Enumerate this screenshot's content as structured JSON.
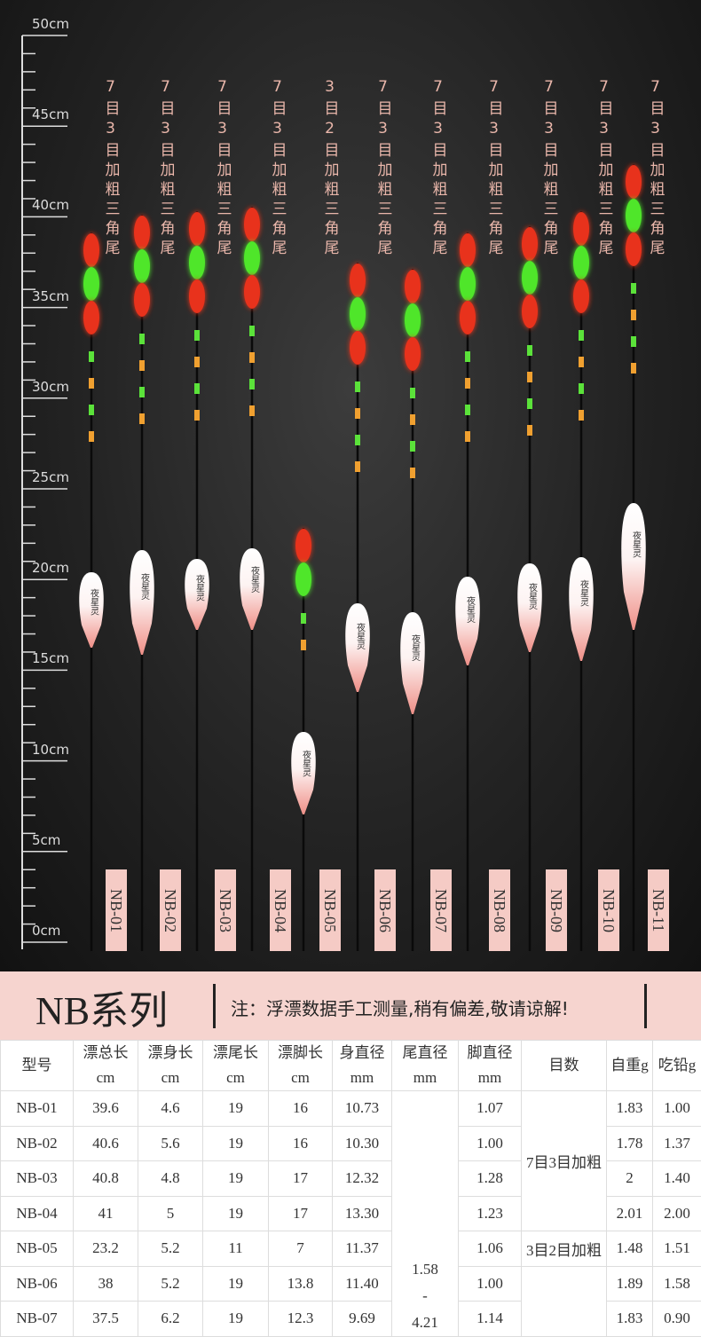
{
  "ruler_labels": [
    "50cm",
    "45cm",
    "40cm",
    "35cm",
    "30cm",
    "25cm",
    "20cm",
    "15cm",
    "10cm",
    "5cm",
    "0cm"
  ],
  "brand_mark": "夜星灵",
  "floats": [
    {
      "tail": "7目3目加粗三角尾",
      "model": "NB-01"
    },
    {
      "tail": "7目3目加粗三角尾",
      "model": "NB-02"
    },
    {
      "tail": "7目3目加粗三角尾",
      "model": "NB-03"
    },
    {
      "tail": "7目3目加粗三角尾",
      "model": "NB-04"
    },
    {
      "tail": "3目2目加粗三角尾",
      "model": "NB-05"
    },
    {
      "tail": "7目3目加粗三角尾",
      "model": "NB-06"
    },
    {
      "tail": "7目3目加粗三角尾",
      "model": "NB-07"
    },
    {
      "tail": "7目3目加粗三角尾",
      "model": "NB-08"
    },
    {
      "tail": "7目3目加粗三角尾",
      "model": "NB-09"
    },
    {
      "tail": "7目3目加粗三角尾",
      "model": "NB-10"
    },
    {
      "tail": "7目3目加粗三角尾",
      "model": "NB-11"
    }
  ],
  "banner": {
    "title": "NB系列",
    "note": "注：浮漂数据手工测量,稍有偏差,敬请谅解!"
  },
  "table": {
    "headers": [
      [
        "型号"
      ],
      [
        "漂总长",
        "cm"
      ],
      [
        "漂身长",
        "cm"
      ],
      [
        "漂尾长",
        "cm"
      ],
      [
        "漂脚长",
        "cm"
      ],
      [
        "身直径",
        "mm"
      ],
      [
        "尾直径",
        "mm"
      ],
      [
        "脚直径",
        "mm"
      ],
      [
        "目数"
      ],
      [
        "自重g"
      ],
      [
        "吃铅g"
      ]
    ],
    "rows": [
      [
        "NB-01",
        "39.6",
        "4.6",
        "19",
        "16",
        "10.73",
        "1.07",
        "1.83",
        "1.00"
      ],
      [
        "NB-02",
        "40.6",
        "5.6",
        "19",
        "16",
        "10.30",
        "1.00",
        "1.78",
        "1.37"
      ],
      [
        "NB-03",
        "40.8",
        "4.8",
        "19",
        "17",
        "12.32",
        "1.28",
        "2",
        "1.40"
      ],
      [
        "NB-04",
        "41",
        "5",
        "19",
        "17",
        "13.30",
        "1.23",
        "2.01",
        "2.00"
      ],
      [
        "NB-05",
        "23.2",
        "5.2",
        "11",
        "7",
        "11.37",
        "1.06",
        "1.48",
        "1.51"
      ],
      [
        "NB-06",
        "38",
        "5.2",
        "19",
        "13.8",
        "11.40",
        "1.00",
        "1.89",
        "1.58"
      ],
      [
        "NB-07",
        "37.5",
        "6.2",
        "19",
        "12.3",
        "9.69",
        "1.14",
        "1.83",
        "0.90"
      ]
    ],
    "tail_diameter": [
      "1.58",
      "-",
      "4.21"
    ],
    "mesh": [
      "7目3目加粗",
      "3目2目加粗"
    ]
  }
}
